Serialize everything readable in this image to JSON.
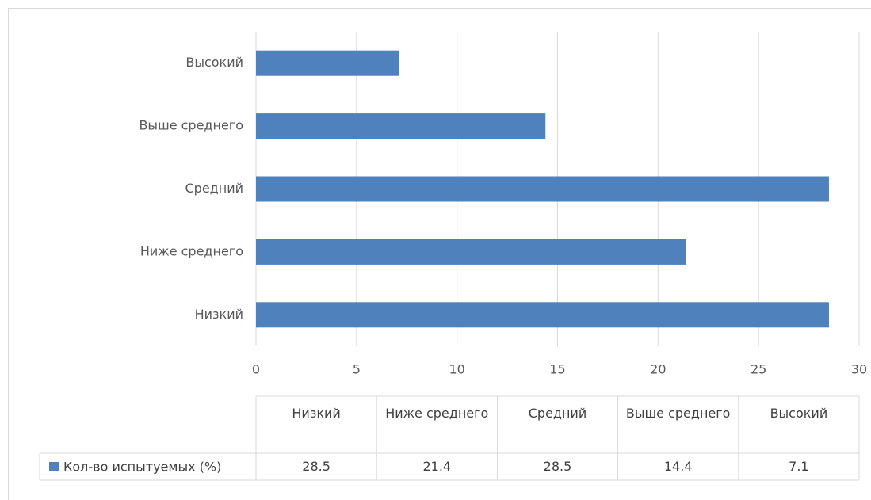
{
  "chart_data": {
    "type": "bar",
    "orientation": "horizontal",
    "categories": [
      "Низкий",
      "Ниже среднего",
      "Средний",
      "Выше среднего",
      "Высокий"
    ],
    "series": [
      {
        "name": "Кол-во испытуемых (%)",
        "color": "#4f81bd",
        "values": [
          28.5,
          21.4,
          28.5,
          14.4,
          7.1
        ]
      }
    ],
    "xlim": [
      0,
      30
    ],
    "xticks": [
      0,
      5,
      10,
      15,
      20,
      25,
      30
    ],
    "grid": true,
    "data_table": true
  }
}
